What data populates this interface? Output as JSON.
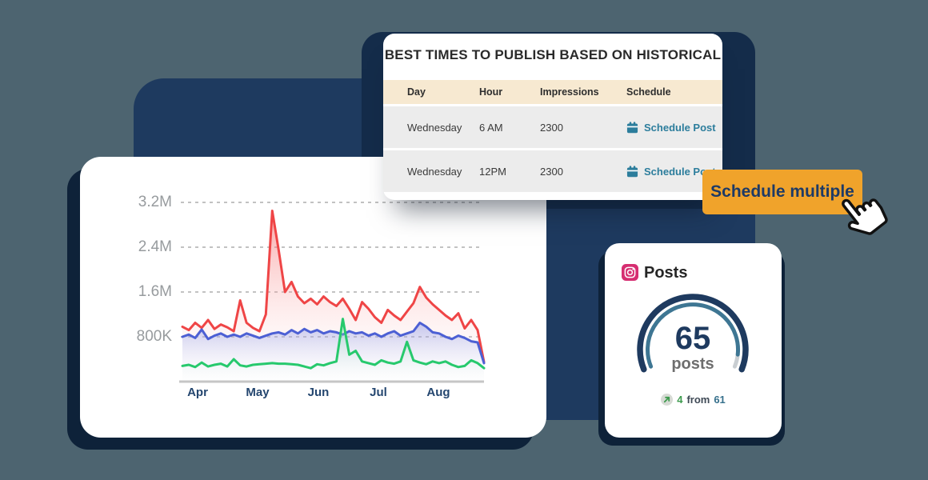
{
  "canvas": {
    "bg": "#4D6470",
    "panel_color": "#1E3A5F",
    "shadow_color": "#0E2239",
    "plate_color": "#142C4A"
  },
  "best_times": {
    "title": "BEST TIMES TO PUBLISH BASED ON HISTORICAL",
    "columns": [
      "Day",
      "Hour",
      "Impressions",
      "Schedule"
    ],
    "rows": [
      {
        "day": "Wednesday",
        "hour": "6 AM",
        "impressions": "2300",
        "action": "Schedule Post"
      },
      {
        "day": "Wednesday",
        "hour": "12PM",
        "impressions": "2300",
        "action": "Schedule Post"
      }
    ],
    "header_bg": "#F7E9D1",
    "row_bg": "#ECECEC",
    "accent": "#2C7D9C"
  },
  "schedule_button": {
    "label": "Schedule multiple",
    "bg": "#F0A32B",
    "text_color": "#1D3A66"
  },
  "posts_card": {
    "title": "Posts",
    "gauge_value": "65",
    "gauge_unit": "posts",
    "gauge": {
      "outer_color": "#1E3A5F",
      "progress_color": "#3E7693",
      "remainder_color": "#C9CED2",
      "progress": 0.93
    },
    "stat": {
      "delta": "4",
      "connector": "from",
      "previous": "61"
    },
    "instagram_color": "#D62E71"
  },
  "chart_data": {
    "type": "area",
    "title": "",
    "xlabel": "",
    "ylabel": "",
    "x_labels": [
      "Apr",
      "May",
      "Jun",
      "Jul",
      "Aug"
    ],
    "y_ticks": [
      "3.2M",
      "2.4M",
      "1.6M",
      "800K"
    ],
    "y_tick_values_m": [
      3.2,
      2.4,
      1.6,
      0.8
    ],
    "ylim_m": [
      0,
      3.45
    ],
    "grid": "dashed-horizontal",
    "legend": "none",
    "series": [
      {
        "name": "impressions-red",
        "color": "#EF4546",
        "fill_top": "rgba(243,92,92,0.55)",
        "fill_bottom": "rgba(255,245,245,0.03)",
        "values_m": [
          0.98,
          0.92,
          1.05,
          0.96,
          1.1,
          0.94,
          1.02,
          0.97,
          0.9,
          1.45,
          1.05,
          0.96,
          0.9,
          1.2,
          3.05,
          2.35,
          1.6,
          1.78,
          1.52,
          1.4,
          1.48,
          1.38,
          1.52,
          1.42,
          1.35,
          1.48,
          1.3,
          1.1,
          1.42,
          1.3,
          1.15,
          1.05,
          1.28,
          1.18,
          1.1,
          1.25,
          1.4,
          1.69,
          1.5,
          1.38,
          1.28,
          1.18,
          1.1,
          1.22,
          0.95,
          1.1,
          0.92,
          0.35
        ]
      },
      {
        "name": "reach-blue",
        "color": "#4C60D4",
        "fill_top": "rgba(116,132,226,0.42)",
        "fill_bottom": "rgba(240,243,252,0.04)",
        "values_m": [
          0.8,
          0.84,
          0.78,
          0.93,
          0.76,
          0.82,
          0.86,
          0.8,
          0.84,
          0.8,
          0.86,
          0.82,
          0.78,
          0.82,
          0.86,
          0.88,
          0.84,
          0.92,
          0.86,
          0.94,
          0.88,
          0.92,
          0.86,
          0.9,
          0.88,
          0.84,
          0.9,
          0.86,
          0.88,
          0.82,
          0.86,
          0.8,
          0.86,
          0.9,
          0.82,
          0.86,
          0.9,
          1.05,
          0.98,
          0.88,
          0.86,
          0.8,
          0.76,
          0.82,
          0.78,
          0.72,
          0.7,
          0.33
        ]
      },
      {
        "name": "engagement-green",
        "color": "#27C96D",
        "fill_top": "rgba(120,220,160,0.38)",
        "fill_bottom": "rgba(243,252,247,0.04)",
        "values_m": [
          0.28,
          0.3,
          0.26,
          0.34,
          0.27,
          0.3,
          0.32,
          0.27,
          0.4,
          0.29,
          0.27,
          0.3,
          0.31,
          0.32,
          0.33,
          0.32,
          0.32,
          0.31,
          0.3,
          0.27,
          0.24,
          0.31,
          0.29,
          0.33,
          0.36,
          1.12,
          0.48,
          0.55,
          0.36,
          0.33,
          0.3,
          0.38,
          0.34,
          0.32,
          0.36,
          0.71,
          0.38,
          0.34,
          0.31,
          0.36,
          0.33,
          0.36,
          0.3,
          0.26,
          0.28,
          0.38,
          0.33,
          0.24
        ]
      }
    ]
  }
}
